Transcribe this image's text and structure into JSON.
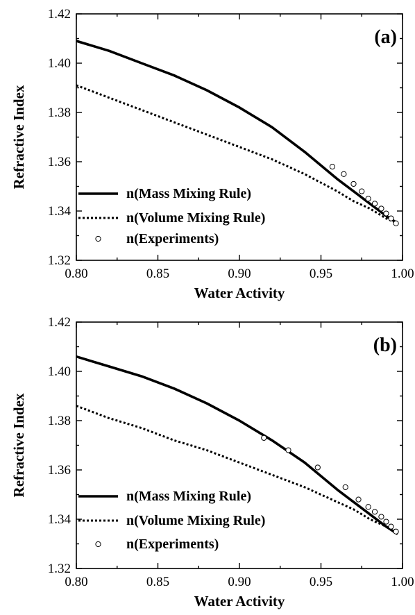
{
  "chart_data": [
    {
      "panel": "(a)",
      "type": "line",
      "xlabel": "Water Activity",
      "ylabel": "Refractive Index",
      "xlim": [
        0.8,
        1.0
      ],
      "ylim": [
        1.32,
        1.42
      ],
      "xticks": [
        "0.80",
        "0.85",
        "0.90",
        "0.95",
        "1.00"
      ],
      "yticks": [
        "1.32",
        "1.34",
        "1.36",
        "1.38",
        "1.40",
        "1.42"
      ],
      "legend_position": "bottom-left",
      "series": [
        {
          "name": "n(Mass Mixing Rule)",
          "style": "solid",
          "x": [
            0.8,
            0.82,
            0.84,
            0.86,
            0.88,
            0.9,
            0.92,
            0.94,
            0.96,
            0.97,
            0.98,
            0.99,
            0.997
          ],
          "y": [
            1.409,
            1.405,
            1.4,
            1.395,
            1.389,
            1.382,
            1.374,
            1.364,
            1.353,
            1.348,
            1.343,
            1.338,
            1.335
          ]
        },
        {
          "name": "n(Volume Mixing Rule)",
          "style": "dotted",
          "x": [
            0.8,
            0.82,
            0.84,
            0.86,
            0.88,
            0.9,
            0.92,
            0.94,
            0.96,
            0.97,
            0.98,
            0.99,
            0.997
          ],
          "y": [
            1.391,
            1.386,
            1.381,
            1.376,
            1.371,
            1.366,
            1.361,
            1.355,
            1.348,
            1.344,
            1.341,
            1.337,
            1.335
          ]
        },
        {
          "name": "n(Experiments)",
          "style": "marker",
          "x": [
            0.957,
            0.964,
            0.97,
            0.975,
            0.979,
            0.983,
            0.987,
            0.99,
            0.993,
            0.996
          ],
          "y": [
            1.358,
            1.355,
            1.351,
            1.348,
            1.345,
            1.343,
            1.341,
            1.339,
            1.337,
            1.335
          ]
        }
      ]
    },
    {
      "panel": "(b)",
      "type": "line",
      "xlabel": "Water Activity",
      "ylabel": "Refractive Index",
      "xlim": [
        0.8,
        1.0
      ],
      "ylim": [
        1.32,
        1.42
      ],
      "xticks": [
        "0.80",
        "0.85",
        "0.90",
        "0.95",
        "1.00"
      ],
      "yticks": [
        "1.32",
        "1.34",
        "1.36",
        "1.38",
        "1.40",
        "1.42"
      ],
      "legend_position": "bottom-left",
      "series": [
        {
          "name": "n(Mass Mixing Rule)",
          "style": "solid",
          "x": [
            0.8,
            0.82,
            0.84,
            0.86,
            0.88,
            0.9,
            0.92,
            0.94,
            0.96,
            0.97,
            0.98,
            0.99,
            0.997
          ],
          "y": [
            1.406,
            1.402,
            1.398,
            1.393,
            1.387,
            1.38,
            1.372,
            1.363,
            1.352,
            1.347,
            1.342,
            1.337,
            1.334
          ]
        },
        {
          "name": "n(Volume Mixing Rule)",
          "style": "dotted",
          "x": [
            0.8,
            0.82,
            0.84,
            0.86,
            0.88,
            0.9,
            0.92,
            0.94,
            0.96,
            0.97,
            0.98,
            0.99,
            0.997
          ],
          "y": [
            1.386,
            1.381,
            1.377,
            1.372,
            1.368,
            1.363,
            1.358,
            1.353,
            1.347,
            1.344,
            1.34,
            1.337,
            1.335
          ]
        },
        {
          "name": "n(Experiments)",
          "style": "marker",
          "x": [
            0.915,
            0.93,
            0.948,
            0.965,
            0.973,
            0.979,
            0.983,
            0.987,
            0.99,
            0.993,
            0.996
          ],
          "y": [
            1.373,
            1.368,
            1.361,
            1.353,
            1.348,
            1.345,
            1.343,
            1.341,
            1.339,
            1.337,
            1.335
          ]
        }
      ]
    }
  ]
}
